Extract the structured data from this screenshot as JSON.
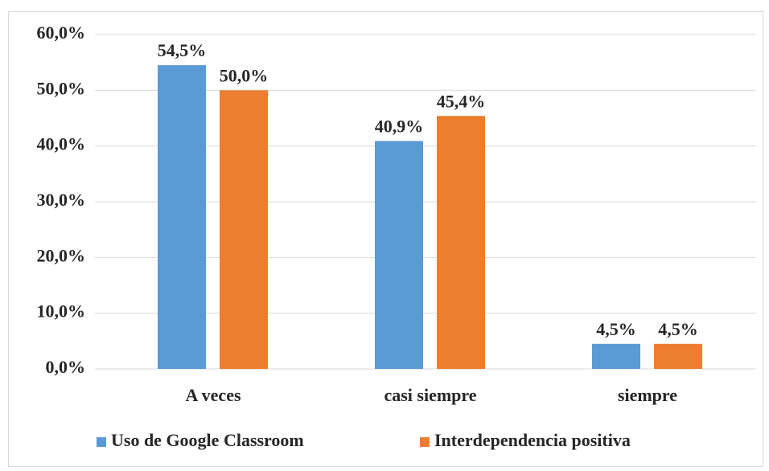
{
  "chart_data": {
    "type": "bar",
    "categories": [
      "A veces",
      "casi siempre",
      "siempre"
    ],
    "series": [
      {
        "name": "Uso de Google Classroom",
        "color": "#5b9bd5",
        "values": [
          54.5,
          40.9,
          4.5
        ],
        "value_labels": [
          "54,5%",
          "40,9%",
          "4,5%"
        ]
      },
      {
        "name": "Interdependencia positiva",
        "color": "#ed7d31",
        "values": [
          50.0,
          45.4,
          4.5
        ],
        "value_labels": [
          "50,0%",
          "45,4%",
          "4,5%"
        ]
      }
    ],
    "ylim": [
      0,
      60
    ],
    "yticks": [
      {
        "value": 0,
        "label": "0,0%"
      },
      {
        "value": 10,
        "label": "10,0%"
      },
      {
        "value": 20,
        "label": "20,0%"
      },
      {
        "value": 30,
        "label": "30,0%"
      },
      {
        "value": 40,
        "label": "40,0%"
      },
      {
        "value": 50,
        "label": "50,0%"
      },
      {
        "value": 60,
        "label": "60,0%"
      }
    ],
    "grid": true,
    "legend": "bottom"
  }
}
